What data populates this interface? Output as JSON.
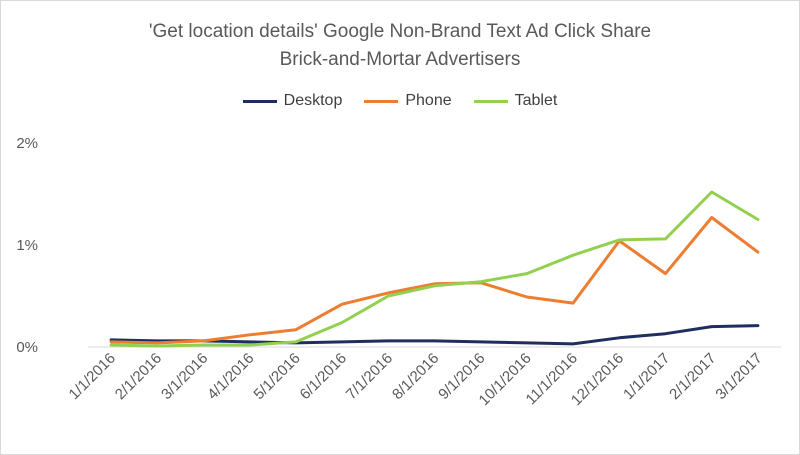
{
  "chart_data": {
    "type": "line",
    "title": "'Get location details' Google Non-Brand Text Ad Click Share",
    "subtitle": "Brick-and-Mortar Advertisers",
    "categories": [
      "1/1/2016",
      "2/1/2016",
      "3/1/2016",
      "4/1/2016",
      "5/1/2016",
      "6/1/2016",
      "7/1/2016",
      "8/1/2016",
      "9/1/2016",
      "10/1/2016",
      "11/1/2016",
      "12/1/2016",
      "1/1/2017",
      "2/1/2017",
      "3/1/2017"
    ],
    "ylim": [
      0,
      2
    ],
    "yticks": [
      {
        "value": 0,
        "label": "0%"
      },
      {
        "value": 1,
        "label": "1%"
      },
      {
        "value": 2,
        "label": "2%"
      }
    ],
    "grid": false,
    "legend_position": "top",
    "series": [
      {
        "name": "Desktop",
        "color": "#1f2e5e",
        "values": [
          0.07,
          0.06,
          0.06,
          0.05,
          0.04,
          0.05,
          0.06,
          0.06,
          0.05,
          0.04,
          0.03,
          0.09,
          0.13,
          0.2,
          0.21
        ]
      },
      {
        "name": "Phone",
        "color": "#ed7d31",
        "values": [
          0.05,
          0.04,
          0.06,
          0.12,
          0.17,
          0.42,
          0.53,
          0.62,
          0.63,
          0.49,
          0.43,
          1.04,
          0.72,
          1.27,
          0.93
        ]
      },
      {
        "name": "Tablet",
        "color": "#92d050",
        "values": [
          0.02,
          0.01,
          0.02,
          0.02,
          0.05,
          0.24,
          0.5,
          0.6,
          0.64,
          0.72,
          0.9,
          1.05,
          1.06,
          1.52,
          1.25
        ]
      }
    ]
  }
}
